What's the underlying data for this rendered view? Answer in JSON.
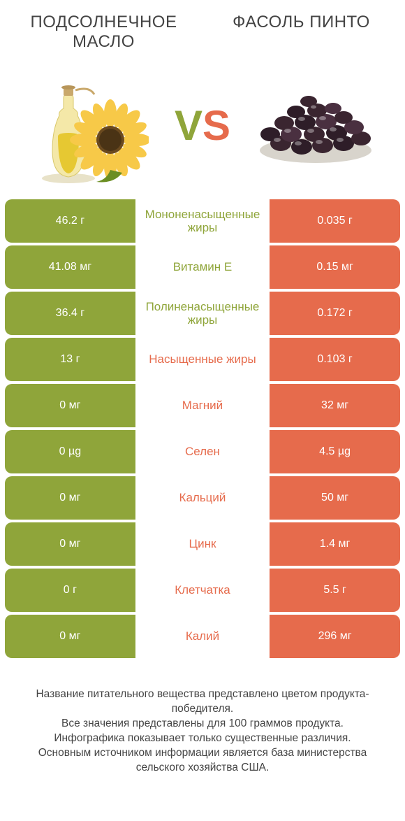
{
  "colors": {
    "left": "#8fa53a",
    "right": "#e66b4c",
    "background": "#ffffff",
    "text": "#444444",
    "cell_text": "#ffffff"
  },
  "header": {
    "left_title": "Подсолнечное масло",
    "right_title": "Фасоль пинто",
    "vs_v": "V",
    "vs_s": "S"
  },
  "rows": [
    {
      "left": "46.2 г",
      "label": "Мононенасыщенные жиры",
      "right": "0.035 г",
      "winner": "left"
    },
    {
      "left": "41.08 мг",
      "label": "Витамин E",
      "right": "0.15 мг",
      "winner": "left"
    },
    {
      "left": "36.4 г",
      "label": "Полиненасыщенные жиры",
      "right": "0.172 г",
      "winner": "left"
    },
    {
      "left": "13 г",
      "label": "Насыщенные жиры",
      "right": "0.103 г",
      "winner": "right"
    },
    {
      "left": "0 мг",
      "label": "Магний",
      "right": "32 мг",
      "winner": "right"
    },
    {
      "left": "0 µg",
      "label": "Селен",
      "right": "4.5 µg",
      "winner": "right"
    },
    {
      "left": "0 мг",
      "label": "Кальций",
      "right": "50 мг",
      "winner": "right"
    },
    {
      "left": "0 мг",
      "label": "Цинк",
      "right": "1.4 мг",
      "winner": "right"
    },
    {
      "left": "0 г",
      "label": "Клетчатка",
      "right": "5.5 г",
      "winner": "right"
    },
    {
      "left": "0 мг",
      "label": "Калий",
      "right": "296 мг",
      "winner": "right"
    }
  ],
  "footnote": "Название питательного вещества представлено цветом продукта-победителя.\nВсе значения представлены для 100 граммов продукта.\nИнфографика показывает только существенные различия.\nОсновным источником информации является база министерства сельского хозяйства США."
}
